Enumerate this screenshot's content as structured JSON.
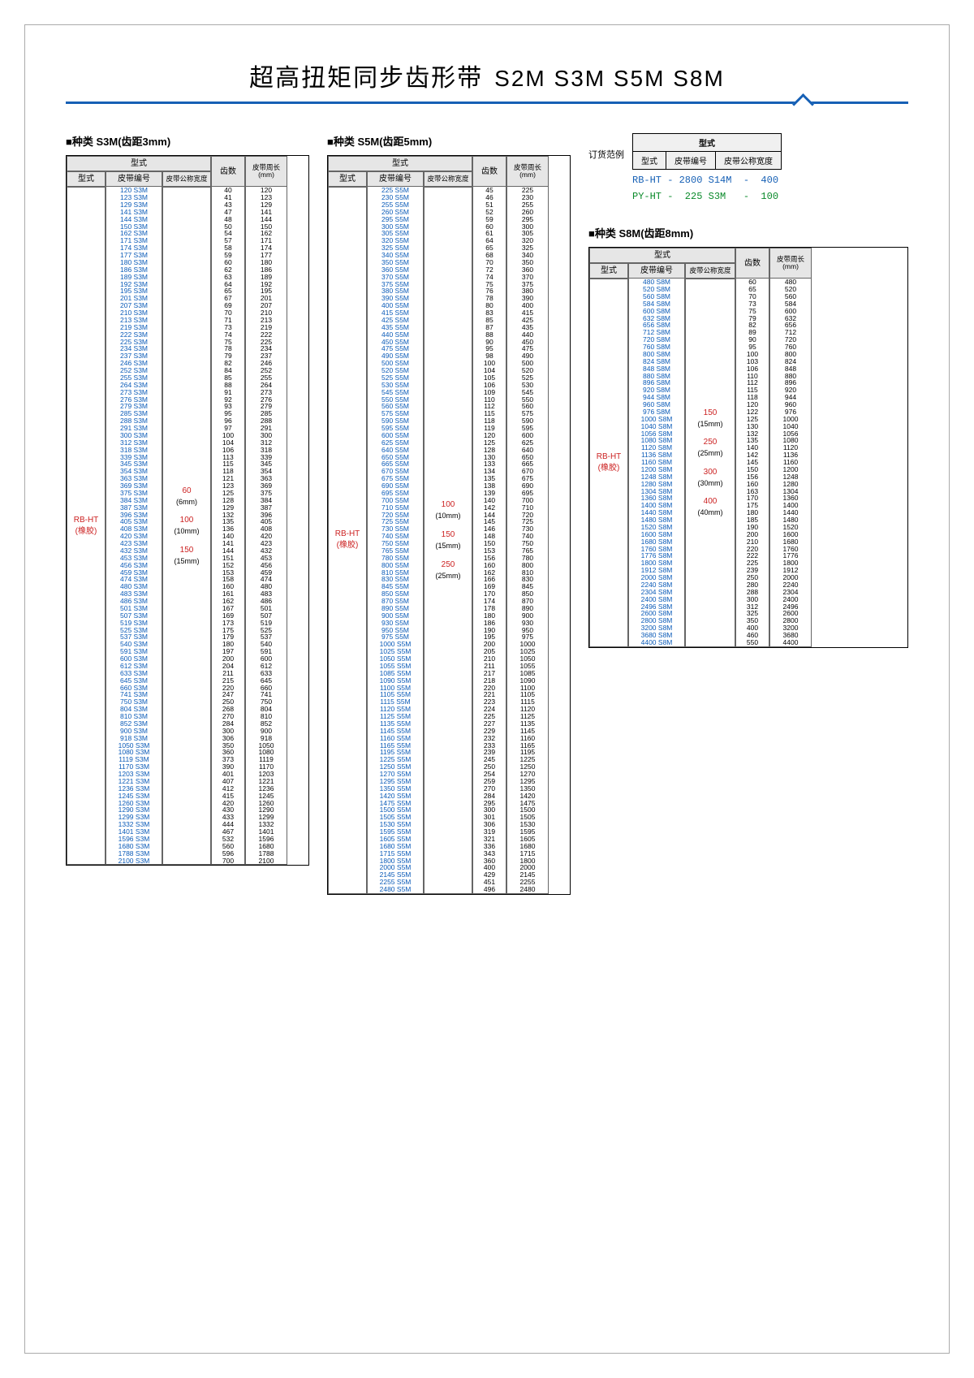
{
  "title": {
    "main": "超高扭矩同步齿形带",
    "sub": "S2M S3M S5M S8M"
  },
  "headers": {
    "group": "型式",
    "type": "型式",
    "code": "皮带编号",
    "width": "皮带公称宽度",
    "teeth": "齿数",
    "circ": "皮带周长",
    "circ_unit": "(mm)"
  },
  "sections": {
    "s3m": {
      "heading": "■种类 S3M(齿距3mm)",
      "type_label": "RB-HT\n(橡胶)",
      "widths": [
        {
          "val": "60",
          "note": "(6mm)"
        },
        {
          "val": "100",
          "note": "(10mm)"
        },
        {
          "val": "150",
          "note": "(15mm)"
        }
      ],
      "rows": [
        [
          120,
          40
        ],
        [
          123,
          41
        ],
        [
          129,
          43
        ],
        [
          141,
          47
        ],
        [
          144,
          48
        ],
        [
          150,
          50
        ],
        [
          162,
          54
        ],
        [
          171,
          57
        ],
        [
          174,
          58
        ],
        [
          177,
          59
        ],
        [
          180,
          60
        ],
        [
          186,
          62
        ],
        [
          189,
          63
        ],
        [
          192,
          64
        ],
        [
          195,
          65
        ],
        [
          201,
          67
        ],
        [
          207,
          69
        ],
        [
          210,
          70
        ],
        [
          213,
          71
        ],
        [
          219,
          73
        ],
        [
          222,
          74
        ],
        [
          225,
          75
        ],
        [
          234,
          78
        ],
        [
          237,
          79
        ],
        [
          246,
          82
        ],
        [
          252,
          84
        ],
        [
          255,
          85
        ],
        [
          264,
          88
        ],
        [
          273,
          91
        ],
        [
          276,
          92
        ],
        [
          279,
          93
        ],
        [
          285,
          95
        ],
        [
          288,
          96
        ],
        [
          291,
          97
        ],
        [
          300,
          100
        ],
        [
          312,
          104
        ],
        [
          318,
          106
        ],
        [
          339,
          113
        ],
        [
          345,
          115
        ],
        [
          354,
          118
        ],
        [
          363,
          121
        ],
        [
          369,
          123
        ],
        [
          375,
          125
        ],
        [
          384,
          128
        ],
        [
          387,
          129
        ],
        [
          396,
          132
        ],
        [
          405,
          135
        ],
        [
          408,
          136
        ],
        [
          420,
          140
        ],
        [
          423,
          141
        ],
        [
          432,
          144
        ],
        [
          453,
          151
        ],
        [
          456,
          152
        ],
        [
          459,
          153
        ],
        [
          474,
          158
        ],
        [
          480,
          160
        ],
        [
          483,
          161
        ],
        [
          486,
          162
        ],
        [
          501,
          167
        ],
        [
          507,
          169
        ],
        [
          519,
          173
        ],
        [
          525,
          175
        ],
        [
          537,
          179
        ],
        [
          540,
          180
        ],
        [
          591,
          197
        ],
        [
          600,
          200
        ],
        [
          612,
          204
        ],
        [
          633,
          211
        ],
        [
          645,
          215
        ],
        [
          660,
          220
        ],
        [
          741,
          247
        ],
        [
          750,
          250
        ],
        [
          804,
          268
        ],
        [
          810,
          270
        ],
        [
          852,
          284
        ],
        [
          900,
          300
        ],
        [
          918,
          306
        ],
        [
          1050,
          350
        ],
        [
          1080,
          360
        ],
        [
          1119,
          373
        ],
        [
          1170,
          390
        ],
        [
          1203,
          401
        ],
        [
          1221,
          407
        ],
        [
          1236,
          412
        ],
        [
          1245,
          415
        ],
        [
          1260,
          420
        ],
        [
          1290,
          430
        ],
        [
          1299,
          433
        ],
        [
          1332,
          444
        ],
        [
          1401,
          467
        ],
        [
          1596,
          532
        ],
        [
          1680,
          560
        ],
        [
          1788,
          596
        ],
        [
          2100,
          700
        ]
      ],
      "code_suffix": " S3M"
    },
    "s5m": {
      "heading": "■种类 S5M(齿距5mm)",
      "type_label": "RB-HT\n(橡胶)",
      "widths": [
        {
          "val": "100",
          "note": "(10mm)"
        },
        {
          "val": "150",
          "note": "(15mm)"
        },
        {
          "val": "250",
          "note": "(25mm)"
        }
      ],
      "rows": [
        [
          225,
          45
        ],
        [
          230,
          46
        ],
        [
          255,
          51
        ],
        [
          260,
          52
        ],
        [
          295,
          59
        ],
        [
          300,
          60
        ],
        [
          305,
          61
        ],
        [
          320,
          64
        ],
        [
          325,
          65
        ],
        [
          340,
          68
        ],
        [
          350,
          70
        ],
        [
          360,
          72
        ],
        [
          370,
          74
        ],
        [
          375,
          75
        ],
        [
          380,
          76
        ],
        [
          390,
          78
        ],
        [
          400,
          80
        ],
        [
          415,
          83
        ],
        [
          425,
          85
        ],
        [
          435,
          87
        ],
        [
          440,
          88
        ],
        [
          450,
          90
        ],
        [
          475,
          95
        ],
        [
          490,
          98
        ],
        [
          500,
          100
        ],
        [
          520,
          104
        ],
        [
          525,
          105
        ],
        [
          530,
          106
        ],
        [
          545,
          109
        ],
        [
          550,
          110
        ],
        [
          560,
          112
        ],
        [
          575,
          115
        ],
        [
          590,
          118
        ],
        [
          595,
          119
        ],
        [
          600,
          120
        ],
        [
          625,
          125
        ],
        [
          640,
          128
        ],
        [
          650,
          130
        ],
        [
          665,
          133
        ],
        [
          670,
          134
        ],
        [
          675,
          135
        ],
        [
          690,
          138
        ],
        [
          695,
          139
        ],
        [
          700,
          140
        ],
        [
          710,
          142
        ],
        [
          720,
          144
        ],
        [
          725,
          145
        ],
        [
          730,
          146
        ],
        [
          740,
          148
        ],
        [
          750,
          150
        ],
        [
          765,
          153
        ],
        [
          780,
          156
        ],
        [
          800,
          160
        ],
        [
          810,
          162
        ],
        [
          830,
          166
        ],
        [
          845,
          169
        ],
        [
          850,
          170
        ],
        [
          870,
          174
        ],
        [
          890,
          178
        ],
        [
          900,
          180
        ],
        [
          930,
          186
        ],
        [
          950,
          190
        ],
        [
          975,
          195
        ],
        [
          1000,
          200
        ],
        [
          1025,
          205
        ],
        [
          1050,
          210
        ],
        [
          1055,
          211
        ],
        [
          1085,
          217
        ],
        [
          1090,
          218
        ],
        [
          1100,
          220
        ],
        [
          1105,
          221
        ],
        [
          1115,
          223
        ],
        [
          1120,
          224
        ],
        [
          1125,
          225
        ],
        [
          1135,
          227
        ],
        [
          1145,
          229
        ],
        [
          1160,
          232
        ],
        [
          1165,
          233
        ],
        [
          1195,
          239
        ],
        [
          1225,
          245
        ],
        [
          1250,
          250
        ],
        [
          1270,
          254
        ],
        [
          1295,
          259
        ],
        [
          1350,
          270
        ],
        [
          1420,
          284
        ],
        [
          1475,
          295
        ],
        [
          1500,
          300
        ],
        [
          1505,
          301
        ],
        [
          1530,
          306
        ],
        [
          1595,
          319
        ],
        [
          1605,
          321
        ],
        [
          1680,
          336
        ],
        [
          1715,
          343
        ],
        [
          1800,
          360
        ],
        [
          2000,
          400
        ],
        [
          2145,
          429
        ],
        [
          2255,
          451
        ],
        [
          2480,
          496
        ]
      ],
      "code_suffix": " S5M"
    },
    "s8m": {
      "heading": "■种类 S8M(齿距8mm)",
      "type_label": "RB-HT\n(橡胶)",
      "widths": [
        {
          "val": "150",
          "note": "(15mm)"
        },
        {
          "val": "250",
          "note": "(25mm)"
        },
        {
          "val": "300",
          "note": "(30mm)"
        },
        {
          "val": "400",
          "note": "(40mm)"
        }
      ],
      "rows": [
        [
          480,
          60
        ],
        [
          520,
          65
        ],
        [
          560,
          70
        ],
        [
          584,
          73
        ],
        [
          600,
          75
        ],
        [
          632,
          79
        ],
        [
          656,
          82
        ],
        [
          712,
          89
        ],
        [
          720,
          90
        ],
        [
          760,
          95
        ],
        [
          800,
          100
        ],
        [
          824,
          103
        ],
        [
          848,
          106
        ],
        [
          880,
          110
        ],
        [
          896,
          112
        ],
        [
          920,
          115
        ],
        [
          944,
          118
        ],
        [
          960,
          120
        ],
        [
          976,
          122
        ],
        [
          1000,
          125
        ],
        [
          1040,
          130
        ],
        [
          1056,
          132
        ],
        [
          1080,
          135
        ],
        [
          1120,
          140
        ],
        [
          1136,
          142
        ],
        [
          1160,
          145
        ],
        [
          1200,
          150
        ],
        [
          1248,
          156
        ],
        [
          1280,
          160
        ],
        [
          1304,
          163
        ],
        [
          1360,
          170
        ],
        [
          1400,
          175
        ],
        [
          1440,
          180
        ],
        [
          1480,
          185
        ],
        [
          1520,
          190
        ],
        [
          1600,
          200
        ],
        [
          1680,
          210
        ],
        [
          1760,
          220
        ],
        [
          1776,
          222
        ],
        [
          1800,
          225
        ],
        [
          1912,
          239
        ],
        [
          2000,
          250
        ],
        [
          2240,
          280
        ],
        [
          2304,
          288
        ],
        [
          2400,
          300
        ],
        [
          2496,
          312
        ],
        [
          2600,
          325
        ],
        [
          2800,
          350
        ],
        [
          3200,
          400
        ],
        [
          3680,
          460
        ],
        [
          4400,
          550
        ]
      ],
      "code_suffix": " S8M"
    }
  },
  "example": {
    "label": "订货范例",
    "row1": "型式",
    "row2": [
      "型式",
      "皮带编号",
      "皮带公称宽度"
    ],
    "line1": "RB-HT - 2800 S14M  -  400",
    "line2": "PY-HT -  225 S3M   -  100"
  },
  "colors": {
    "accent": "#1660b5",
    "code": "#0b5bb8",
    "red": "#c22",
    "green": "#0a8a2a",
    "header_bg": "#e6e6e6"
  }
}
